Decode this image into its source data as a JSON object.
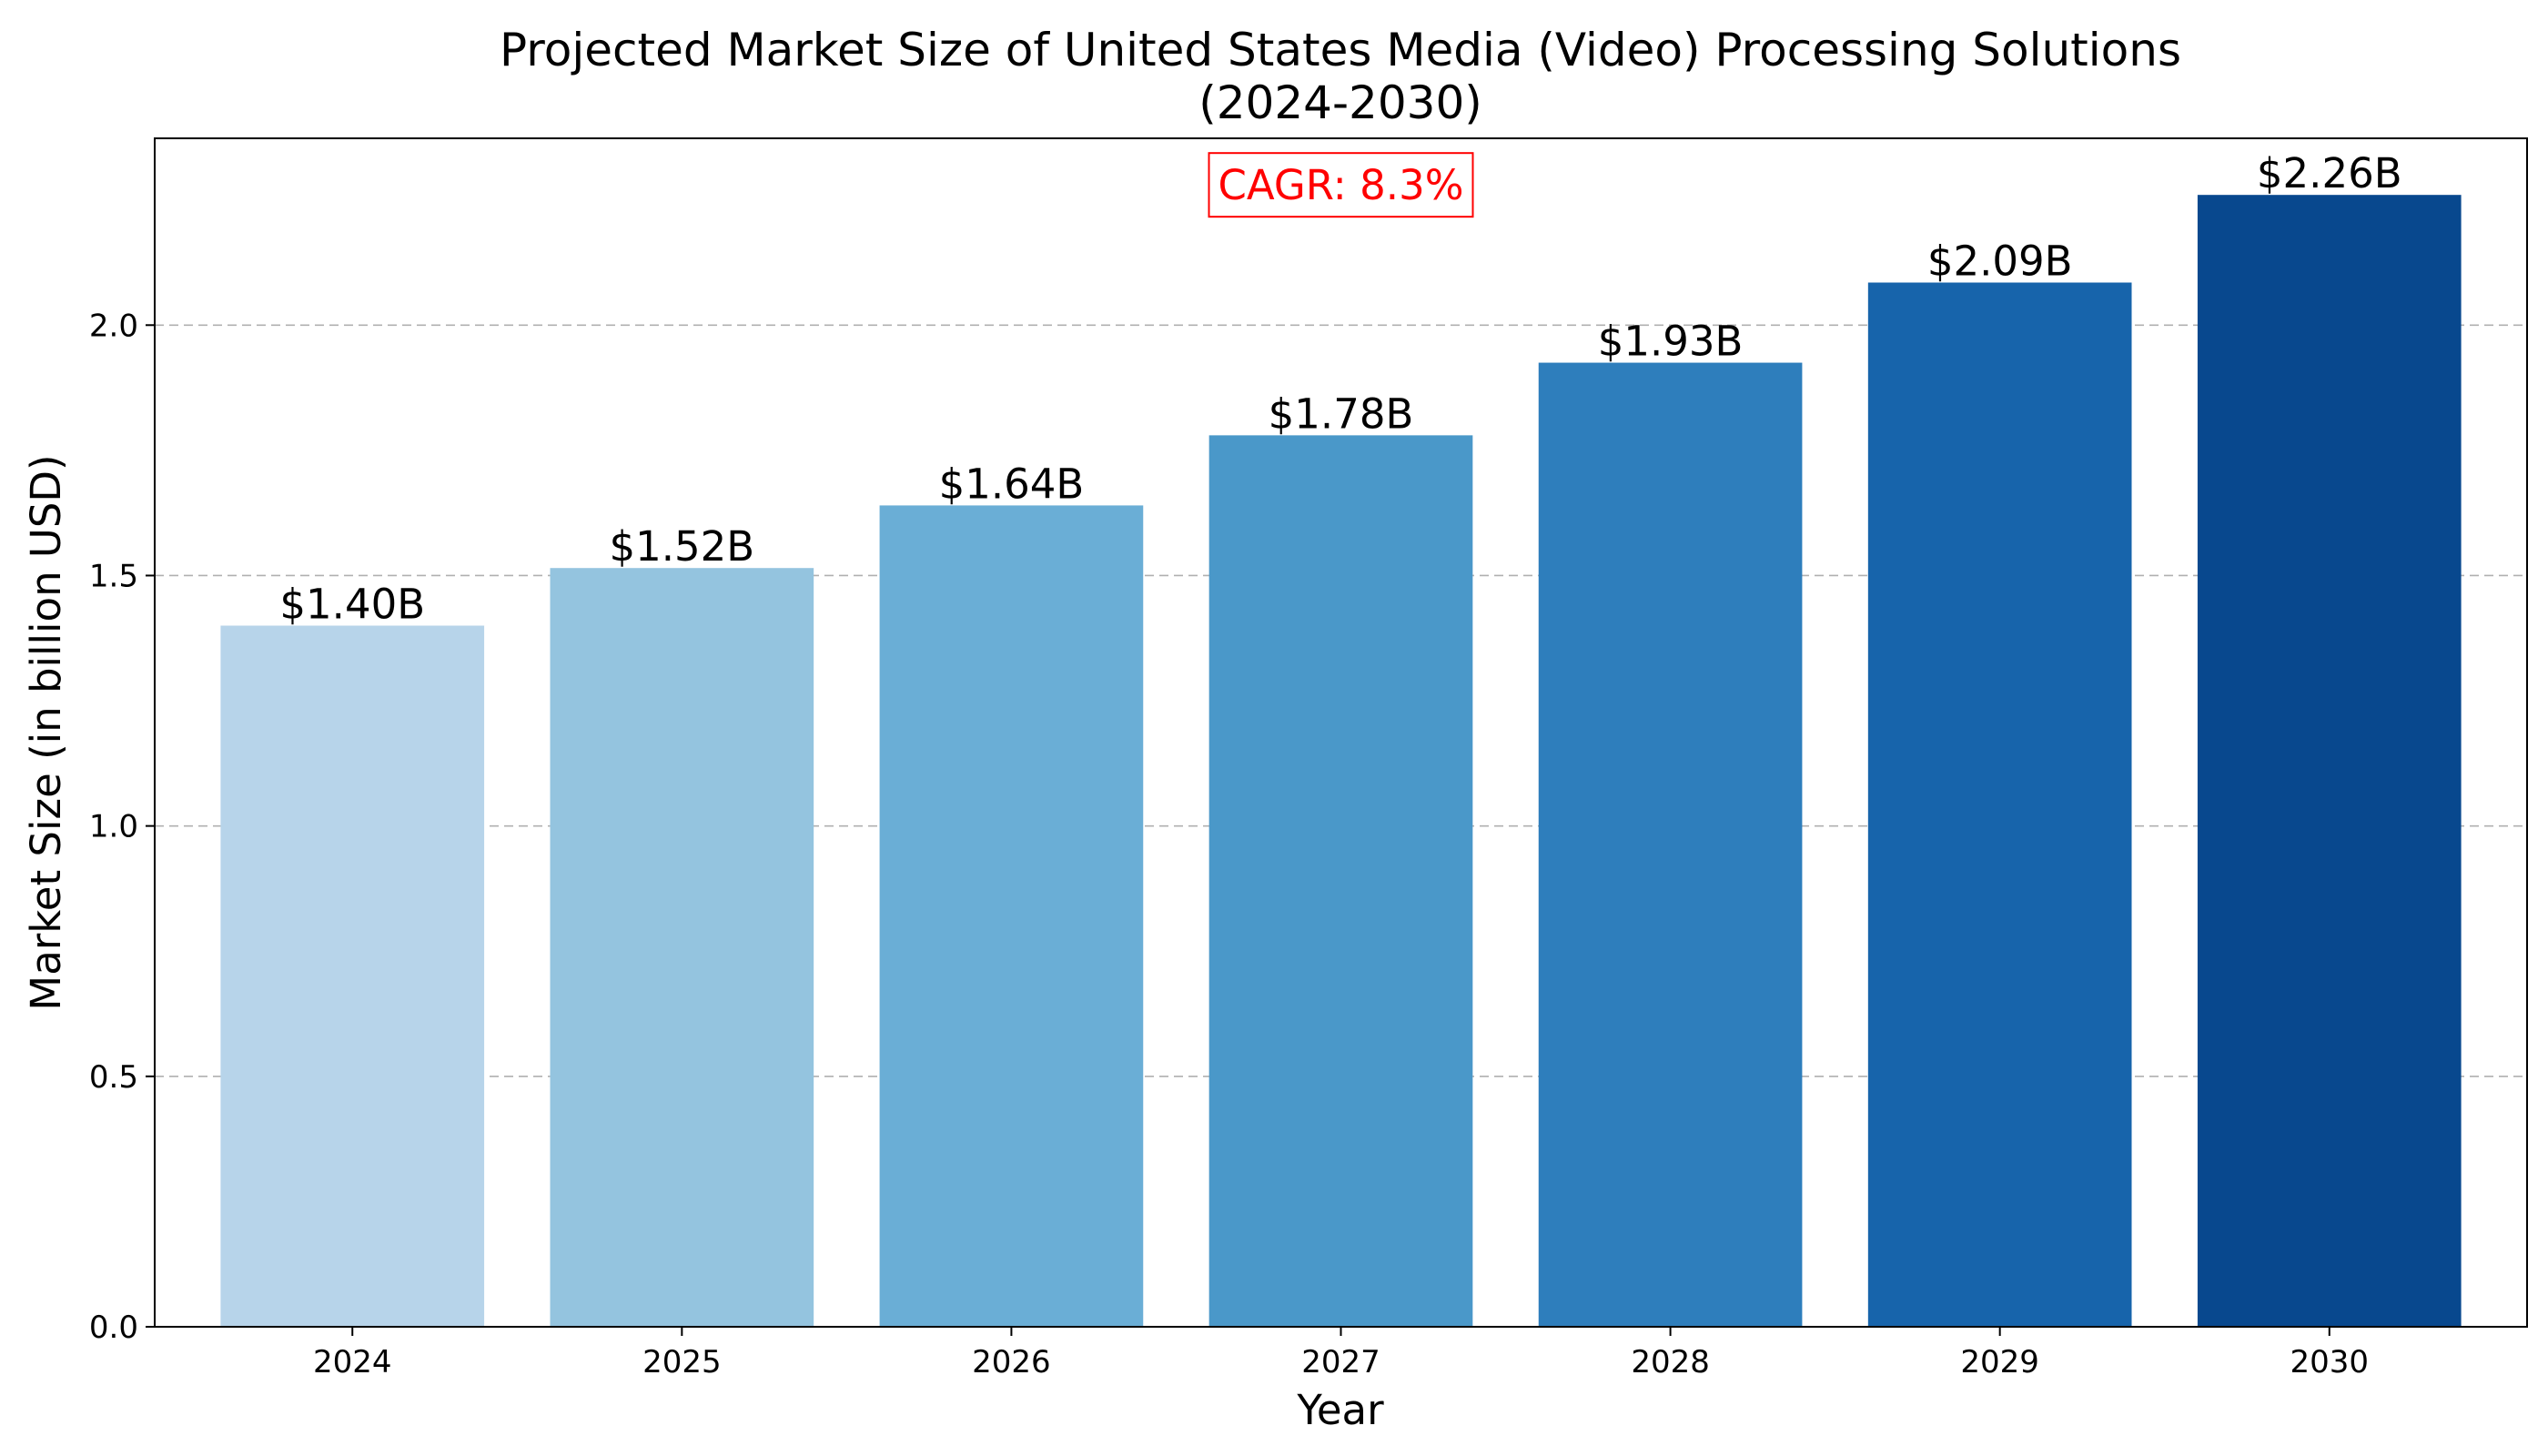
{
  "chart_data": {
    "type": "bar",
    "title_lines": [
      "Projected Market Size of United States Media (Video) Processing Solutions",
      "(2024-2030)"
    ],
    "xlabel": "Year",
    "ylabel": "Market Size (in billion USD)",
    "categories": [
      "2024",
      "2025",
      "2026",
      "2027",
      "2028",
      "2029",
      "2030"
    ],
    "values": [
      1.4,
      1.515,
      1.64,
      1.78,
      1.925,
      2.085,
      2.26
    ],
    "data_labels": [
      "$1.40B",
      "$1.52B",
      "$1.64B",
      "$1.78B",
      "$1.93B",
      "$2.09B",
      "$2.26B"
    ],
    "colors": [
      "#b7d4ea",
      "#94c4df",
      "#6aaed6",
      "#4a98c9",
      "#2e7ebc",
      "#1764ab",
      "#08488e"
    ],
    "ylim": [
      0,
      2.373
    ],
    "yticks": [
      0.0,
      0.5,
      1.0,
      1.5,
      2.0
    ],
    "ytick_labels": [
      "0.0",
      "0.5",
      "1.0",
      "1.5",
      "2.0"
    ],
    "grid": "y-dashed",
    "annotation": {
      "text": "CAGR: 8.3%",
      "color": "#ff0000",
      "y_value": 2.28
    }
  }
}
